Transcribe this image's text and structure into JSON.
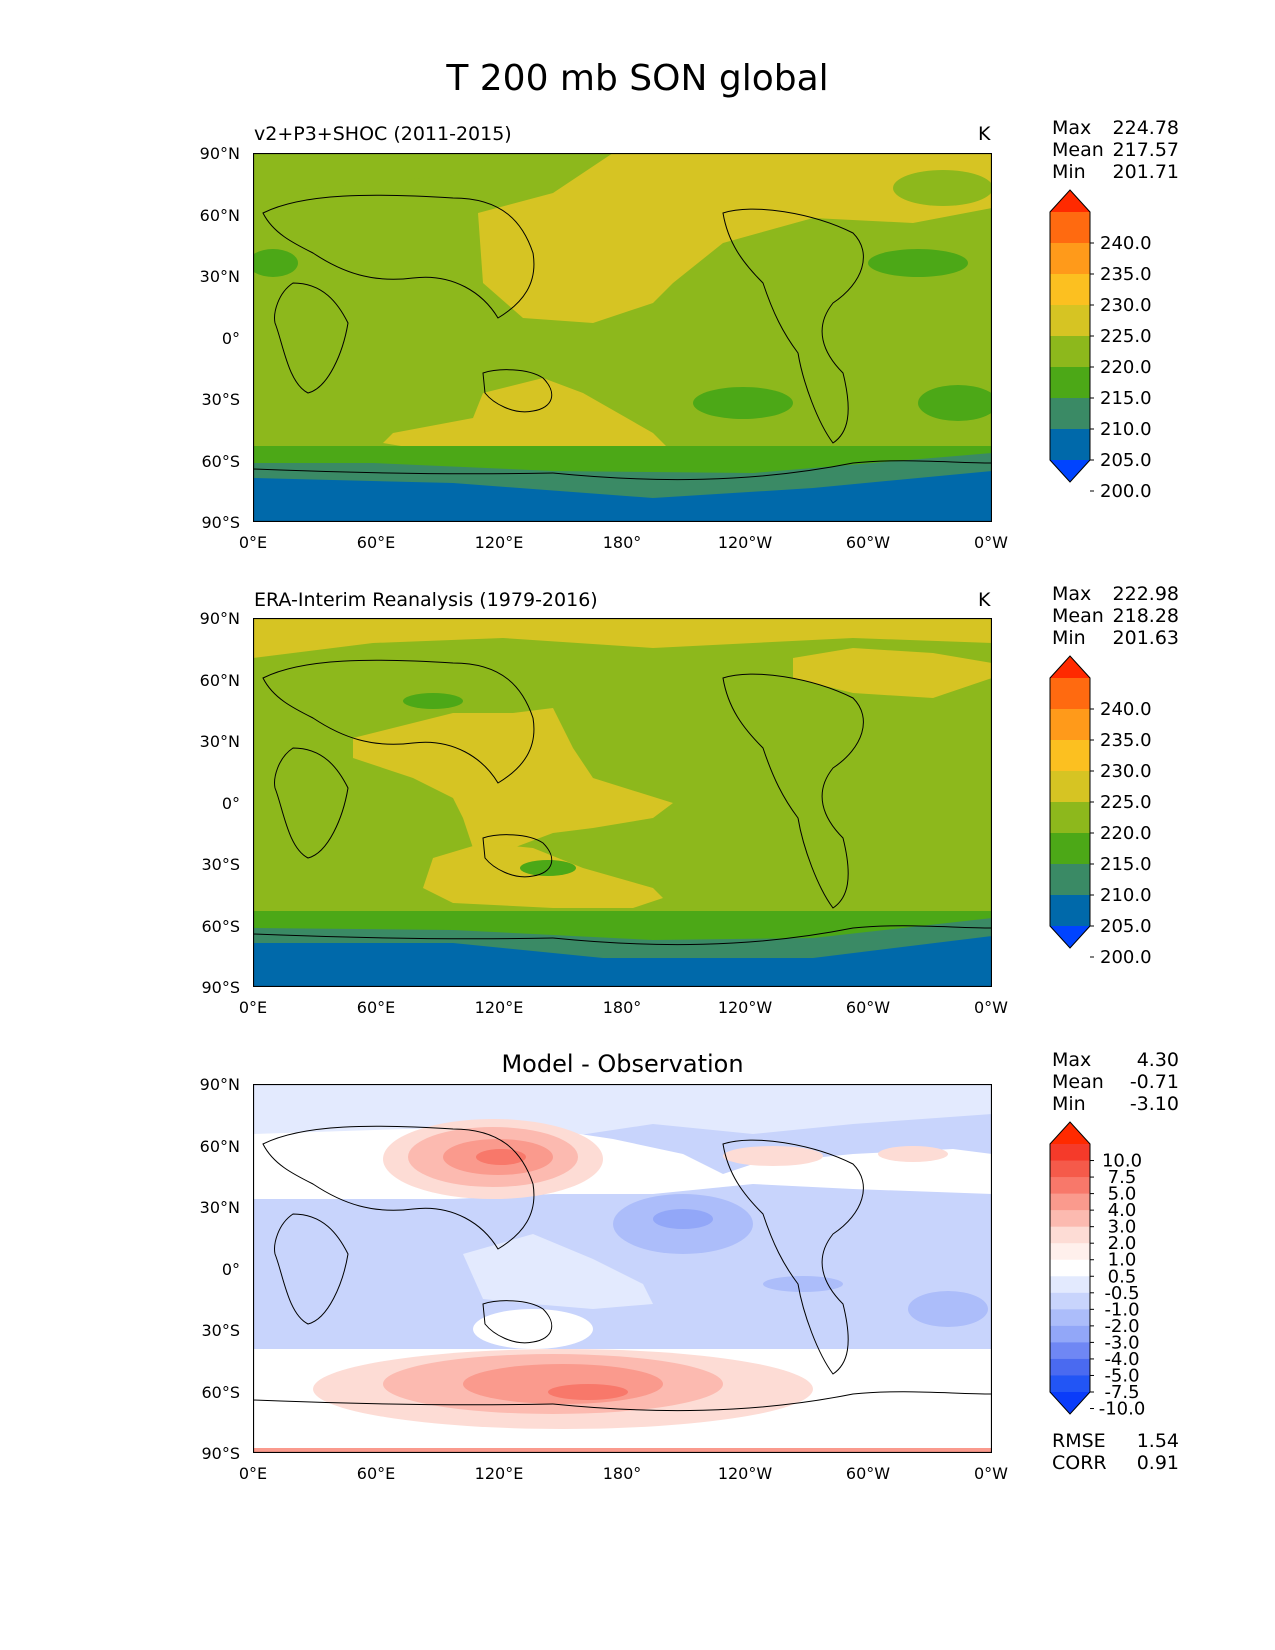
{
  "title": "T 200 mb SON global",
  "units": "K",
  "lat_ticks": [
    "90°N",
    "60°N",
    "30°N",
    "0°",
    "30°S",
    "60°S",
    "90°S"
  ],
  "lon_ticks": [
    "0°E",
    "60°E",
    "120°E",
    "180°",
    "120°W",
    "60°W",
    "0°W"
  ],
  "panels": [
    {
      "title": "v2+P3+SHOC (2011-2015)",
      "stats": {
        "max_label": "Max",
        "max": "224.78",
        "mean_label": "Mean",
        "mean": "217.57",
        "min_label": "Min",
        "min": "201.71"
      }
    },
    {
      "title": "ERA-Interim Reanalysis (1979-2016)",
      "stats": {
        "max_label": "Max",
        "max": "222.98",
        "mean_label": "Mean",
        "mean": "218.28",
        "min_label": "Min",
        "min": "201.63"
      }
    },
    {
      "title": "Model - Observation",
      "stats": {
        "max_label": "Max",
        "max": "4.30",
        "mean_label": "Mean",
        "mean": "-0.71",
        "min_label": "Min",
        "min": "-3.10"
      },
      "rmse_label": "RMSE",
      "rmse": "1.54",
      "corr_label": "CORR",
      "corr": "0.91"
    }
  ],
  "colorbars": {
    "field": {
      "labels": [
        "240.0",
        "235.0",
        "230.0",
        "225.0",
        "220.0",
        "215.0",
        "210.0",
        "205.0",
        "200.0"
      ],
      "colors": [
        "#ff2a00",
        "#ff6a10",
        "#ff9a1a",
        "#fcc020",
        "#d6c423",
        "#8db81c",
        "#4ca817",
        "#3a8a65",
        "#0069aa",
        "#0044ff"
      ]
    },
    "diff": {
      "labels": [
        "10.0",
        "7.5",
        "5.0",
        "4.0",
        "3.0",
        "2.0",
        "1.0",
        "0.5",
        "-0.5",
        "-1.0",
        "-2.0",
        "-3.0",
        "-4.0",
        "-5.0",
        "-7.5",
        "-10.0"
      ],
      "colors": [
        "#ff2a00",
        "#f53a2a",
        "#f55a4a",
        "#f8786a",
        "#fa9a8d",
        "#fcbab0",
        "#fddcd5",
        "#fff0ec",
        "#ffffff",
        "#e3eafe",
        "#c8d4fc",
        "#acbdfa",
        "#92a7f8",
        "#6f87f4",
        "#4a6af0",
        "#2255f5",
        "#0a3cfa"
      ]
    }
  }
}
